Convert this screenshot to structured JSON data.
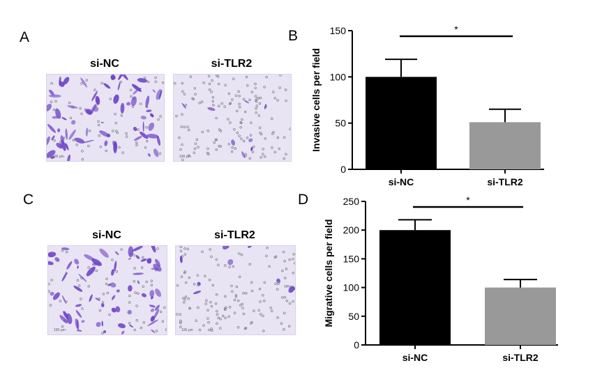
{
  "panels": {
    "a": "A",
    "b": "B",
    "c": "C",
    "d": "D"
  },
  "images": {
    "top_left_label": "si-NC",
    "top_right_label": "si-TLR2",
    "bottom_left_label": "si-NC",
    "bottom_right_label": "si-TLR2",
    "scale_text": "100 μm"
  },
  "colors": {
    "bar_si_nc": "#000000",
    "bar_si_tlr2": "#999999",
    "stain": "#6a3fc4",
    "background_membrane": "#e9e4f4"
  },
  "chart_data": [
    {
      "type": "bar",
      "categories": [
        "si-NC",
        "si-TLR2"
      ],
      "values": [
        100,
        51
      ],
      "errors": [
        19,
        14
      ],
      "ylabel": "Invasive cells per field",
      "ylim": [
        0,
        150
      ],
      "yticks": [
        0,
        50,
        100,
        150
      ],
      "significance": "*",
      "grid": false
    },
    {
      "type": "bar",
      "categories": [
        "si-NC",
        "si-TLR2"
      ],
      "values": [
        200,
        100
      ],
      "errors": [
        18,
        14
      ],
      "ylabel": "Migrative cells per field",
      "ylim": [
        0,
        250
      ],
      "yticks": [
        0,
        50,
        100,
        150,
        200,
        250
      ],
      "significance": "*",
      "grid": false
    }
  ]
}
